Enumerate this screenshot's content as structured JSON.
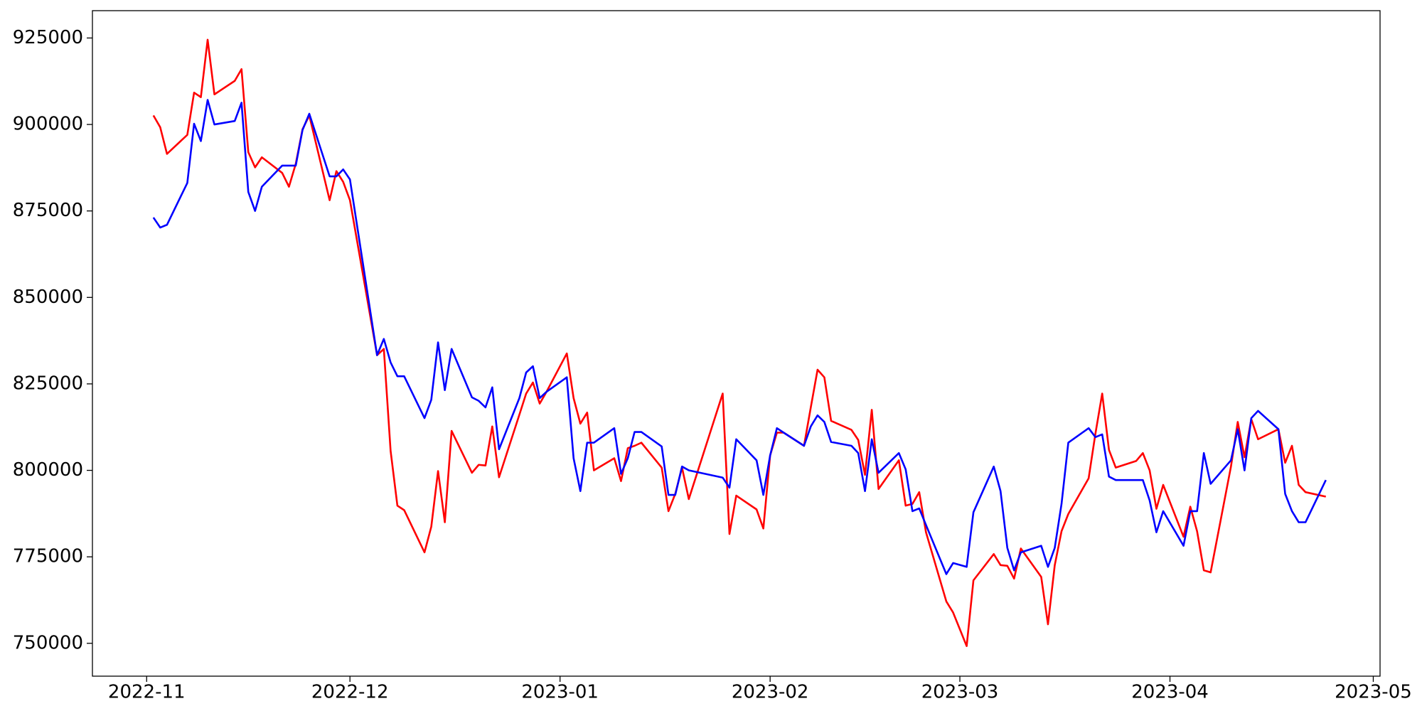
{
  "chart_data": {
    "type": "line",
    "x": [
      "2022-11-02",
      "2022-11-03",
      "2022-11-04",
      "2022-11-07",
      "2022-11-08",
      "2022-11-09",
      "2022-11-10",
      "2022-11-11",
      "2022-11-14",
      "2022-11-15",
      "2022-11-16",
      "2022-11-17",
      "2022-11-18",
      "2022-11-21",
      "2022-11-22",
      "2022-11-23",
      "2022-11-24",
      "2022-11-25",
      "2022-11-28",
      "2022-11-29",
      "2022-11-30",
      "2022-12-01",
      "2022-12-05",
      "2022-12-06",
      "2022-12-07",
      "2022-12-08",
      "2022-12-09",
      "2022-12-12",
      "2022-12-13",
      "2022-12-14",
      "2022-12-15",
      "2022-12-16",
      "2022-12-19",
      "2022-12-20",
      "2022-12-21",
      "2022-12-22",
      "2022-12-23",
      "2022-12-26",
      "2022-12-27",
      "2022-12-28",
      "2022-12-29",
      "2022-12-30",
      "2023-01-02",
      "2023-01-03",
      "2023-01-04",
      "2023-01-05",
      "2023-01-06",
      "2023-01-09",
      "2023-01-10",
      "2023-01-11",
      "2023-01-12",
      "2023-01-13",
      "2023-01-16",
      "2023-01-17",
      "2023-01-18",
      "2023-01-19",
      "2023-01-20",
      "2023-01-25",
      "2023-01-26",
      "2023-01-27",
      "2023-01-30",
      "2023-01-31",
      "2023-02-01",
      "2023-02-02",
      "2023-02-03",
      "2023-02-06",
      "2023-02-07",
      "2023-02-08",
      "2023-02-09",
      "2023-02-10",
      "2023-02-13",
      "2023-02-14",
      "2023-02-15",
      "2023-02-16",
      "2023-02-17",
      "2023-02-20",
      "2023-02-21",
      "2023-02-22",
      "2023-02-23",
      "2023-02-24",
      "2023-02-27",
      "2023-02-28",
      "2023-03-02",
      "2023-03-03",
      "2023-03-06",
      "2023-03-07",
      "2023-03-08",
      "2023-03-09",
      "2023-03-10",
      "2023-03-13",
      "2023-03-14",
      "2023-03-15",
      "2023-03-16",
      "2023-03-17",
      "2023-03-20",
      "2023-03-21",
      "2023-03-22",
      "2023-03-23",
      "2023-03-24",
      "2023-03-27",
      "2023-03-28",
      "2023-03-29",
      "2023-03-30",
      "2023-03-31",
      "2023-04-03",
      "2023-04-04",
      "2023-04-05",
      "2023-04-06",
      "2023-04-07",
      "2023-04-10",
      "2023-04-11",
      "2023-04-12",
      "2023-04-13",
      "2023-04-14",
      "2023-04-17",
      "2023-04-18",
      "2023-04-19",
      "2023-04-20",
      "2023-04-21",
      "2023-04-24"
    ],
    "series": [
      {
        "color": "#ff0000",
        "values": [
          902600,
          899200,
          891500,
          897000,
          909200,
          907900,
          924500,
          908700,
          912600,
          916000,
          892000,
          887600,
          890500,
          886000,
          882000,
          888600,
          898600,
          902600,
          878100,
          886500,
          883400,
          878100,
          833300,
          835100,
          805600,
          789800,
          788500,
          776300,
          783700,
          799800,
          785000,
          811400,
          799300,
          801600,
          801400,
          812700,
          798000,
          816100,
          822200,
          825400,
          819300,
          822700,
          833800,
          820900,
          813500,
          816700,
          800000,
          803500,
          796900,
          806400,
          807100,
          808000,
          800800,
          788200,
          793200,
          800800,
          791700,
          822200,
          781600,
          792700,
          788700,
          783200,
          804300,
          810900,
          810900,
          807100,
          818200,
          829100,
          826900,
          814300,
          811700,
          808800,
          798700,
          817500,
          794600,
          802900,
          789800,
          790300,
          793700,
          782100,
          762100,
          758900,
          749200,
          768200,
          775800,
          772600,
          772400,
          768700,
          777400,
          769200,
          755500,
          772600,
          782400,
          787400,
          797700,
          810600,
          822200,
          805900,
          800800,
          802700,
          805000,
          800000,
          788900,
          795800,
          780800,
          789500,
          782400,
          771100,
          770500,
          801100,
          814000,
          803800,
          814800,
          809000,
          811900,
          802200,
          807100,
          795800,
          793700,
          792400
        ]
      },
      {
        "color": "#0000ff",
        "values": [
          873100,
          870200,
          871000,
          883100,
          900200,
          895200,
          907100,
          900000,
          901000,
          906300,
          880500,
          875000,
          882000,
          888100,
          888100,
          888100,
          898400,
          903100,
          885000,
          885000,
          887000,
          884100,
          833300,
          838000,
          831200,
          827200,
          827200,
          815100,
          820400,
          837000,
          823200,
          835100,
          821100,
          820100,
          818200,
          824000,
          806100,
          820900,
          828300,
          830100,
          820900,
          822700,
          826900,
          803500,
          794000,
          808000,
          808000,
          812200,
          799000,
          803500,
          811100,
          811100,
          806900,
          792900,
          792900,
          801100,
          800000,
          797900,
          795000,
          809000,
          802900,
          792900,
          804300,
          812200,
          810900,
          807100,
          812700,
          815900,
          814000,
          808200,
          807100,
          805000,
          794000,
          809000,
          799300,
          805000,
          800300,
          788200,
          789000,
          784200,
          770000,
          773200,
          772100,
          787900,
          801100,
          794000,
          777600,
          771100,
          776300,
          778200,
          772100,
          777600,
          790300,
          808000,
          812200,
          809600,
          810400,
          798200,
          797200,
          797200,
          797200,
          791300,
          782100,
          788200,
          778200,
          788200,
          788200,
          805000,
          796100,
          802900,
          811900,
          800000,
          815100,
          817200,
          811900,
          793200,
          788200,
          785000,
          785000,
          797200
        ]
      }
    ],
    "xlim": [
      "2022-10-24",
      "2023-05-02"
    ],
    "xticks": [
      "2022-11",
      "2022-12",
      "2023-01",
      "2023-02",
      "2023-03",
      "2023-04",
      "2023-05"
    ],
    "ylim": [
      740500,
      932900
    ],
    "yticks": [
      750000,
      775000,
      800000,
      825000,
      850000,
      875000,
      900000,
      925000
    ]
  }
}
